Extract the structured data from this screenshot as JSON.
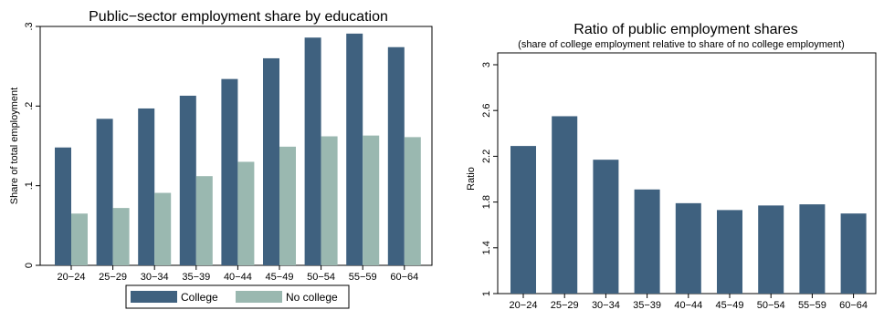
{
  "colors": {
    "college": "#3f617f",
    "no_college": "#9ab8b0",
    "frame": "#000000"
  },
  "chart_data": [
    {
      "type": "bar",
      "title": "Public−sector employment share by education",
      "ylabel": "Share of total employment",
      "xlabel": "",
      "categories": [
        "20−24",
        "25−29",
        "30−34",
        "35−39",
        "40−44",
        "45−49",
        "50−54",
        "55−59",
        "60−64"
      ],
      "ylim": [
        0,
        0.3
      ],
      "yticks": [
        0,
        0.1,
        0.2,
        0.3
      ],
      "ytick_labels": [
        "0",
        ".1",
        ".2",
        ".3"
      ],
      "grid": false,
      "legend": "bottom",
      "series": [
        {
          "name": "College",
          "color": "#3f617f",
          "values": [
            0.148,
            0.184,
            0.197,
            0.213,
            0.234,
            0.26,
            0.286,
            0.291,
            0.274
          ]
        },
        {
          "name": "No college",
          "color": "#9ab8b0",
          "values": [
            0.065,
            0.072,
            0.091,
            0.112,
            0.13,
            0.149,
            0.162,
            0.163,
            0.161
          ]
        }
      ]
    },
    {
      "type": "bar",
      "title": "Ratio of public employment shares",
      "subtitle": "(share of college employment relative to share of no college employment)",
      "ylabel": "Ratio",
      "xlabel": "",
      "categories": [
        "20−24",
        "25−29",
        "30−34",
        "35−39",
        "40−44",
        "45−49",
        "50−54",
        "55−59",
        "60−64"
      ],
      "ylim": [
        1,
        3
      ],
      "yticks": [
        1,
        1.4,
        1.8,
        2.2,
        2.6,
        3
      ],
      "ytick_labels": [
        "1",
        "1.4",
        "1.8",
        "2.2",
        "2.6",
        "3"
      ],
      "grid": false,
      "series": [
        {
          "color": "#3f617f",
          "values": [
            2.29,
            2.55,
            2.17,
            1.91,
            1.79,
            1.73,
            1.77,
            1.78,
            1.7
          ]
        }
      ]
    }
  ]
}
